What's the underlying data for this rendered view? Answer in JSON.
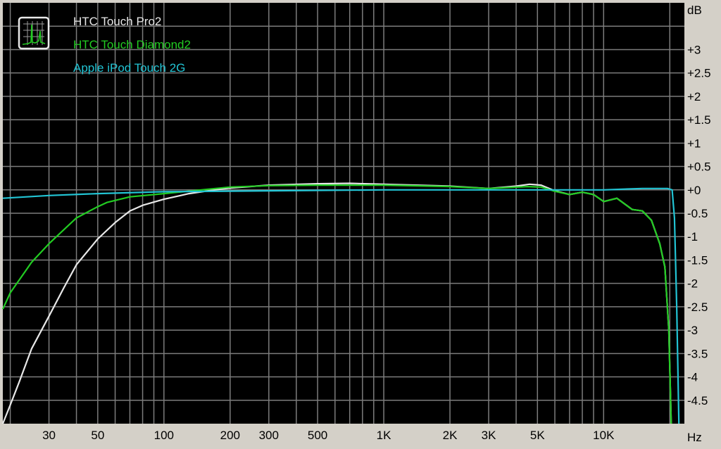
{
  "chart_data": {
    "type": "line",
    "title": "",
    "xlabel": "Hz",
    "ylabel": "dB",
    "x_scale": "log",
    "xlim": [
      18.5,
      23300
    ],
    "ylim": [
      -5,
      4
    ],
    "grid": true,
    "legend_position": "top-left",
    "background_color": "#000000",
    "grid_color": "#7c7c7c",
    "x_ticks": [
      {
        "value": 30,
        "label": "30"
      },
      {
        "value": 50,
        "label": "50"
      },
      {
        "value": 100,
        "label": "100"
      },
      {
        "value": 200,
        "label": "200"
      },
      {
        "value": 300,
        "label": "300"
      },
      {
        "value": 500,
        "label": "500"
      },
      {
        "value": 1000,
        "label": "1K"
      },
      {
        "value": 2000,
        "label": "2K"
      },
      {
        "value": 3000,
        "label": "3K"
      },
      {
        "value": 5000,
        "label": "5K"
      },
      {
        "value": 10000,
        "label": "10K"
      }
    ],
    "y_ticks": [
      {
        "value": 3,
        "label": "+3"
      },
      {
        "value": 2.5,
        "label": "+2.5"
      },
      {
        "value": 2,
        "label": "+2"
      },
      {
        "value": 1.5,
        "label": "+1.5"
      },
      {
        "value": 1,
        "label": "+1"
      },
      {
        "value": 0.5,
        "label": "+0.5"
      },
      {
        "value": 0,
        "label": "+0"
      },
      {
        "value": -0.5,
        "label": "-0.5"
      },
      {
        "value": -1,
        "label": "-1"
      },
      {
        "value": -1.5,
        "label": "-1.5"
      },
      {
        "value": -2,
        "label": "-2"
      },
      {
        "value": -2.5,
        "label": "-2.5"
      },
      {
        "value": -3,
        "label": "-3"
      },
      {
        "value": -3.5,
        "label": "-3.5"
      },
      {
        "value": -4,
        "label": "-4"
      },
      {
        "value": -4.5,
        "label": "-4.5"
      }
    ],
    "series": [
      {
        "name": "HTC Touch Pro2",
        "color": "#e8e8e8",
        "points": [
          [
            18.5,
            -5
          ],
          [
            20,
            -4.6
          ],
          [
            22,
            -4.1
          ],
          [
            25,
            -3.4
          ],
          [
            30,
            -2.7
          ],
          [
            35,
            -2.1
          ],
          [
            40,
            -1.6
          ],
          [
            50,
            -1.05
          ],
          [
            60,
            -0.7
          ],
          [
            70,
            -0.45
          ],
          [
            80,
            -0.33
          ],
          [
            100,
            -0.2
          ],
          [
            130,
            -0.08
          ],
          [
            170,
            0
          ],
          [
            200,
            0.04
          ],
          [
            300,
            0.1
          ],
          [
            500,
            0.13
          ],
          [
            700,
            0.14
          ],
          [
            1000,
            0.12
          ],
          [
            2000,
            0.08
          ],
          [
            3000,
            0.03
          ],
          [
            4000,
            0.08
          ],
          [
            4600,
            0.12
          ],
          [
            5200,
            0.1
          ],
          [
            6000,
            -0.02
          ],
          [
            7000,
            -0.1
          ],
          [
            8000,
            -0.05
          ],
          [
            9000,
            -0.1
          ],
          [
            10000,
            -0.25
          ],
          [
            11500,
            -0.18
          ],
          [
            13500,
            -0.42
          ],
          [
            15000,
            -0.45
          ],
          [
            16500,
            -0.65
          ],
          [
            18000,
            -1.15
          ],
          [
            19000,
            -1.65
          ],
          [
            19800,
            -3
          ],
          [
            20300,
            -5
          ]
        ]
      },
      {
        "name": "HTC Touch Diamond2",
        "color": "#22cc22",
        "points": [
          [
            18.5,
            -2.55
          ],
          [
            20,
            -2.2
          ],
          [
            25,
            -1.55
          ],
          [
            30,
            -1.15
          ],
          [
            40,
            -0.6
          ],
          [
            50,
            -0.36
          ],
          [
            55,
            -0.27
          ],
          [
            70,
            -0.15
          ],
          [
            100,
            -0.08
          ],
          [
            200,
            0.06
          ],
          [
            300,
            0.09
          ],
          [
            500,
            0.1
          ],
          [
            1000,
            0.1
          ],
          [
            2000,
            0.07
          ],
          [
            3000,
            0.03
          ],
          [
            4500,
            0.07
          ],
          [
            5200,
            0.06
          ],
          [
            6000,
            -0.03
          ],
          [
            7000,
            -0.1
          ],
          [
            8000,
            -0.05
          ],
          [
            9000,
            -0.1
          ],
          [
            10000,
            -0.25
          ],
          [
            11500,
            -0.18
          ],
          [
            13500,
            -0.42
          ],
          [
            15000,
            -0.45
          ],
          [
            16500,
            -0.65
          ],
          [
            18000,
            -1.15
          ],
          [
            19000,
            -1.65
          ],
          [
            19800,
            -3
          ],
          [
            20300,
            -5
          ]
        ]
      },
      {
        "name": "Apple iPod Touch 2G",
        "color": "#22c4d4",
        "points": [
          [
            18.5,
            -0.18
          ],
          [
            30,
            -0.12
          ],
          [
            50,
            -0.08
          ],
          [
            100,
            -0.04
          ],
          [
            300,
            -0.02
          ],
          [
            1000,
            0
          ],
          [
            10000,
            0
          ],
          [
            15000,
            0.03
          ],
          [
            19500,
            0.03
          ],
          [
            20500,
            0
          ],
          [
            21000,
            -0.6
          ],
          [
            21500,
            -2.5
          ],
          [
            22000,
            -5
          ]
        ]
      }
    ]
  }
}
